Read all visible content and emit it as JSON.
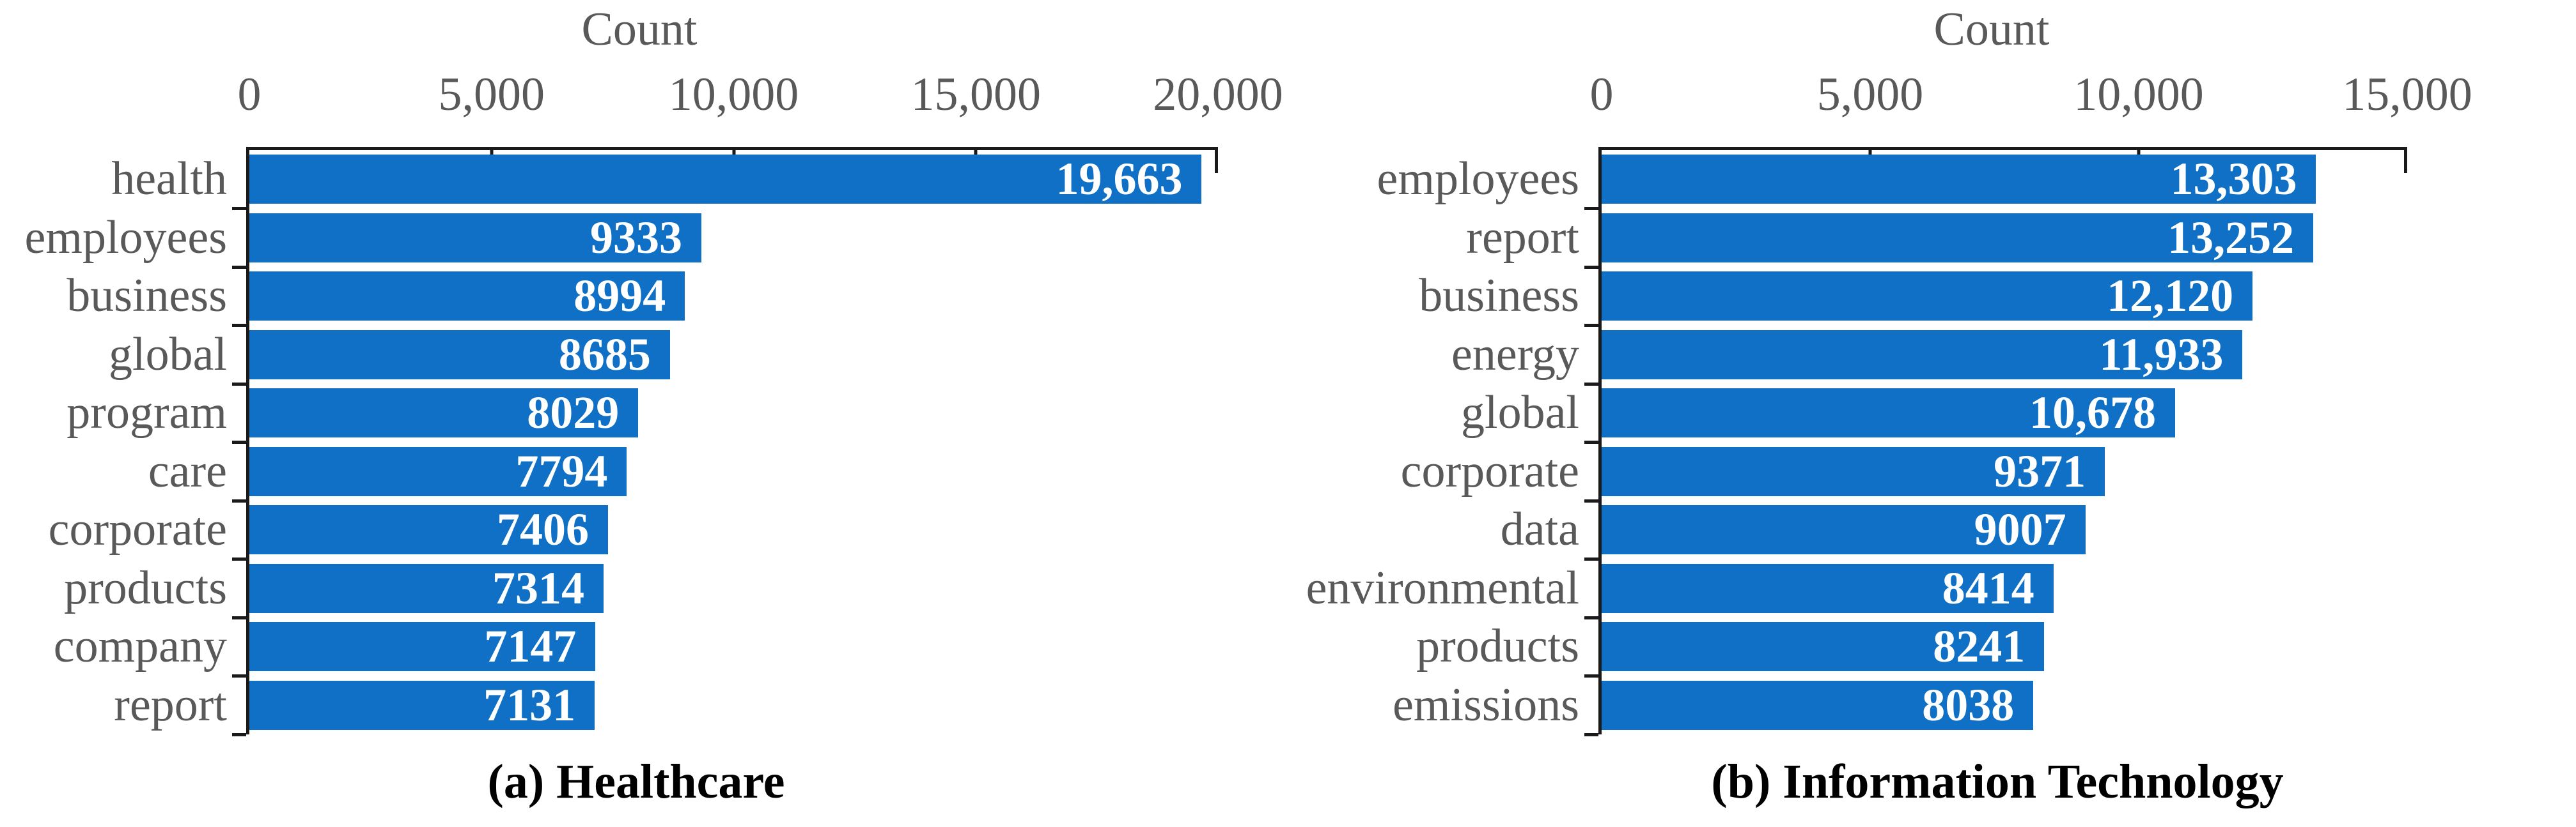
{
  "colors": {
    "bar": "#0F70C5",
    "axis": "#1a1a1a",
    "axis_text": "#595959",
    "value_text": "#ffffff",
    "caption_text": "#000000",
    "background": "#ffffff"
  },
  "chart_data": [
    {
      "type": "bar",
      "orientation": "horizontal",
      "title": "Count",
      "caption": "(a) Healthcare",
      "categories": [
        "health",
        "employees",
        "business",
        "global",
        "program",
        "care",
        "corporate",
        "products",
        "company",
        "report"
      ],
      "values": [
        19663,
        9333,
        8994,
        8685,
        8029,
        7794,
        7406,
        7314,
        7147,
        7131
      ],
      "value_labels": [
        "19,663",
        "9333",
        "8994",
        "8685",
        "8029",
        "7794",
        "7406",
        "7314",
        "7147",
        "7131"
      ],
      "xlim": [
        0,
        20000
      ],
      "x_ticks": [
        {
          "value": 0,
          "label": "0"
        },
        {
          "value": 5000,
          "label": "5,000"
        },
        {
          "value": 10000,
          "label": "10,000"
        },
        {
          "value": 15000,
          "label": "15,000"
        },
        {
          "value": 20000,
          "label": "20,000"
        }
      ],
      "grid": false,
      "legend": "none",
      "value_label_position": "inside-right"
    },
    {
      "type": "bar",
      "orientation": "horizontal",
      "title": "Count",
      "caption": "(b) Information Technology",
      "categories": [
        "employees",
        "report",
        "business",
        "energy",
        "global",
        "corporate",
        "data",
        "environmental",
        "products",
        "emissions"
      ],
      "values": [
        13303,
        13252,
        12120,
        11933,
        10678,
        9371,
        9007,
        8414,
        8241,
        8038
      ],
      "value_labels": [
        "13,303",
        "13,252",
        "12,120",
        "11,933",
        "10,678",
        "9371",
        "9007",
        "8414",
        "8241",
        "8038"
      ],
      "xlim": [
        0,
        15000
      ],
      "x_ticks": [
        {
          "value": 0,
          "label": "0"
        },
        {
          "value": 5000,
          "label": "5,000"
        },
        {
          "value": 10000,
          "label": "10,000"
        },
        {
          "value": 15000,
          "label": "15,000"
        }
      ],
      "grid": false,
      "legend": "none",
      "value_label_position": "inside-right"
    }
  ]
}
